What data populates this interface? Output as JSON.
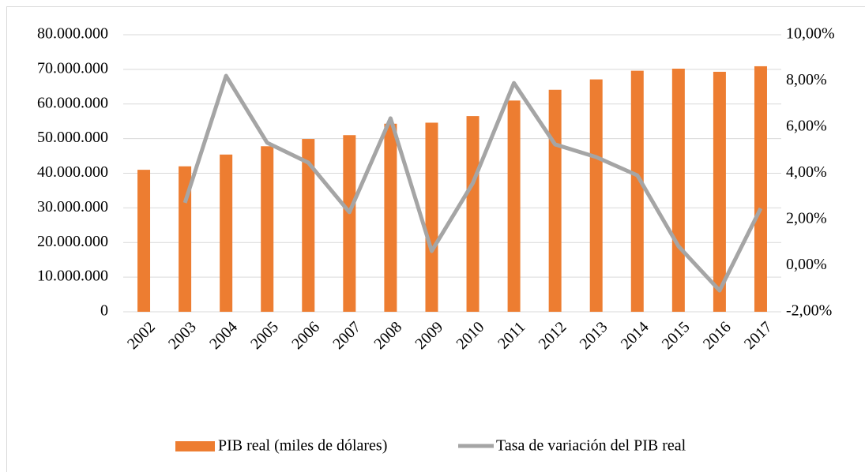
{
  "chart_data": {
    "type": "bar_line",
    "categories": [
      "2002",
      "2003",
      "2004",
      "2005",
      "2006",
      "2007",
      "2008",
      "2009",
      "2010",
      "2011",
      "2012",
      "2013",
      "2014",
      "2015",
      "2016",
      "2017"
    ],
    "series": [
      {
        "name": "PIB real (miles de dólares)",
        "color": "#ED7D31",
        "type": "bar",
        "values": [
          41000000,
          42000000,
          45400000,
          47800000,
          49900000,
          51000000,
          54300000,
          54600000,
          56500000,
          61000000,
          64100000,
          67100000,
          69600000,
          70200000,
          69300000,
          70900000
        ]
      },
      {
        "name": "Tasa de variación del PIB real",
        "color": "#A5A5A5",
        "type": "line",
        "axis": "y2",
        "values": [
          null,
          2.72,
          8.22,
          5.32,
          4.46,
          2.31,
          6.38,
          0.63,
          3.57,
          7.91,
          5.25,
          4.7,
          3.91,
          0.84,
          -1.08,
          2.48
        ]
      }
    ],
    "ylim": [
      0,
      80000000
    ],
    "yticks": [
      0,
      {
        "value": 10000000,
        "label": "10.000.000"
      },
      {
        "value": 20000000,
        "label": "20.000.000"
      },
      {
        "value": 30000000,
        "label": "30.000.000"
      },
      {
        "value": 40000000,
        "label": "40.000.000"
      },
      {
        "value": 50000000,
        "label": "50.000.000"
      },
      {
        "value": 60000000,
        "label": "60.000.000"
      },
      {
        "value": 70000000,
        "label": "70.000.000"
      },
      {
        "value": 80000000,
        "label": "80.000.000"
      }
    ],
    "y2lim": [
      -2,
      10
    ],
    "y2ticks": [
      {
        "value": -2,
        "label": "-2,00%"
      },
      {
        "value": 0,
        "label": "0,00%"
      },
      {
        "value": 2,
        "label": "2,00%"
      },
      {
        "value": 4,
        "label": "4,00%"
      },
      {
        "value": 6,
        "label": "6,00%"
      },
      {
        "value": 8,
        "label": "8,00%"
      },
      {
        "value": 10,
        "label": "10,00%"
      }
    ],
    "grid": true,
    "legend": "bottom"
  }
}
